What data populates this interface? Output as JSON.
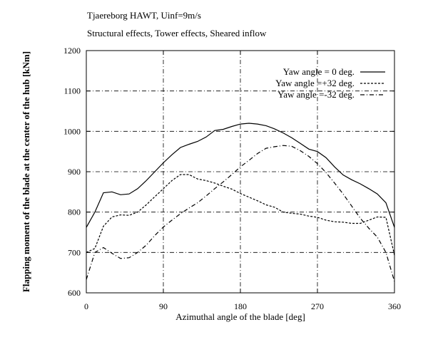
{
  "chart_data": {
    "type": "line",
    "title": "Tjaereborg HAWT, Uinf=9m/s",
    "subtitle": "Structural effects, Tower effects, Sheared inflow",
    "xlabel": "Azimuthal angle of the blade [deg]",
    "ylabel": "Flapping moment of the blade at the center of the hub [kNm]",
    "xlim": [
      0,
      360
    ],
    "ylim": [
      600,
      1200
    ],
    "xticks": [
      0,
      90,
      180,
      270,
      360
    ],
    "yticks": [
      600,
      700,
      800,
      900,
      1000,
      1100,
      1200
    ],
    "grid": true,
    "legend_position": "top-right",
    "series": [
      {
        "name": "Yaw angle =  0 deg.",
        "style": "solid",
        "x": [
          0,
          10,
          20,
          30,
          40,
          50,
          60,
          70,
          80,
          90,
          100,
          110,
          120,
          130,
          140,
          150,
          160,
          170,
          180,
          190,
          200,
          210,
          220,
          230,
          240,
          250,
          260,
          270,
          280,
          290,
          300,
          310,
          320,
          330,
          340,
          350,
          360
        ],
        "values": [
          762,
          800,
          848,
          850,
          843,
          845,
          858,
          878,
          900,
          922,
          942,
          960,
          968,
          975,
          986,
          1002,
          1005,
          1012,
          1018,
          1020,
          1018,
          1014,
          1006,
          996,
          984,
          970,
          956,
          950,
          935,
          912,
          892,
          880,
          870,
          858,
          845,
          823,
          762
        ]
      },
      {
        "name": "Yaw angle =+32 deg.",
        "style": "dashed",
        "x": [
          0,
          10,
          20,
          30,
          40,
          50,
          60,
          70,
          80,
          90,
          100,
          110,
          120,
          130,
          140,
          150,
          160,
          170,
          180,
          190,
          200,
          210,
          220,
          230,
          240,
          250,
          260,
          270,
          280,
          290,
          300,
          310,
          320,
          330,
          340,
          350,
          360
        ],
        "values": [
          700,
          710,
          765,
          788,
          793,
          792,
          800,
          818,
          838,
          858,
          878,
          893,
          893,
          882,
          878,
          872,
          864,
          857,
          846,
          837,
          828,
          818,
          812,
          800,
          797,
          795,
          790,
          787,
          780,
          776,
          775,
          772,
          772,
          780,
          788,
          787,
          693
        ]
      },
      {
        "name": "Yaw angle =-32 deg.",
        "style": "dashdot",
        "x": [
          0,
          10,
          20,
          30,
          40,
          50,
          60,
          70,
          80,
          90,
          100,
          110,
          120,
          130,
          140,
          150,
          160,
          170,
          180,
          190,
          200,
          210,
          220,
          230,
          240,
          250,
          260,
          270,
          280,
          290,
          300,
          310,
          320,
          330,
          340,
          350,
          360
        ],
        "values": [
          633,
          700,
          712,
          698,
          685,
          687,
          700,
          718,
          742,
          763,
          780,
          796,
          810,
          823,
          840,
          858,
          875,
          893,
          912,
          928,
          945,
          958,
          962,
          965,
          963,
          952,
          938,
          920,
          898,
          872,
          845,
          815,
          785,
          760,
          738,
          700,
          628
        ]
      }
    ]
  }
}
